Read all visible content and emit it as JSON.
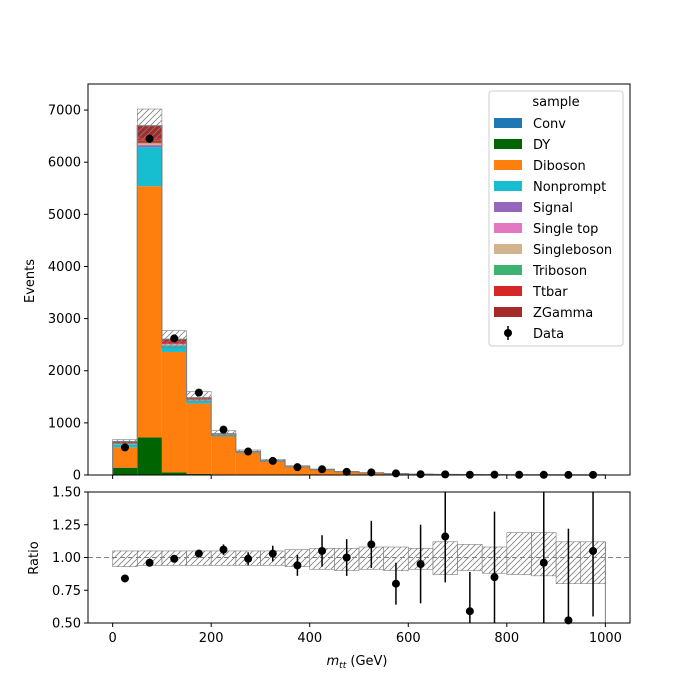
{
  "chart_data": [
    {
      "type": "stacked-histogram",
      "xlabel": "",
      "ylabel": "Events",
      "xlim": [
        -50,
        1050
      ],
      "ylim": [
        0,
        7500
      ],
      "yticks": [
        0,
        1000,
        2000,
        3000,
        4000,
        5000,
        6000,
        7000
      ],
      "bins": [
        0,
        50,
        100,
        150,
        200,
        250,
        300,
        350,
        400,
        450,
        500,
        550,
        600,
        650,
        700,
        750,
        800,
        850,
        900,
        950,
        1000
      ],
      "legend": {
        "title": "sample",
        "placement": "top-right",
        "data_label": "Data"
      },
      "series": [
        {
          "name": "Conv",
          "color": "#1f77b4",
          "values": [
            0,
            0,
            0,
            0,
            0,
            0,
            0,
            0,
            0,
            0,
            0,
            0,
            0,
            0,
            0,
            0,
            0,
            0,
            0,
            0
          ]
        },
        {
          "name": "DY",
          "color": "#006400",
          "values": [
            140,
            720,
            50,
            20,
            8,
            4,
            2,
            1,
            1,
            0,
            0,
            0,
            0,
            0,
            0,
            0,
            0,
            0,
            0,
            0
          ]
        },
        {
          "name": "Diboson",
          "color": "#ff7f0e",
          "values": [
            390,
            4820,
            2310,
            1350,
            730,
            420,
            260,
            150,
            100,
            60,
            40,
            25,
            15,
            10,
            8,
            6,
            4,
            3,
            2,
            2
          ]
        },
        {
          "name": "Nonprompt",
          "color": "#17becf",
          "values": [
            60,
            750,
            120,
            60,
            30,
            15,
            8,
            4,
            2,
            1,
            1,
            0,
            0,
            0,
            0,
            0,
            0,
            0,
            0,
            0
          ]
        },
        {
          "name": "Signal",
          "color": "#9467bd",
          "values": [
            2,
            30,
            10,
            4,
            2,
            1,
            0,
            0,
            0,
            0,
            0,
            0,
            0,
            0,
            0,
            0,
            0,
            0,
            0,
            0
          ]
        },
        {
          "name": "Single top",
          "color": "#e377c2",
          "values": [
            1,
            10,
            5,
            3,
            2,
            1,
            0,
            0,
            0,
            0,
            0,
            0,
            0,
            0,
            0,
            0,
            0,
            0,
            0,
            0
          ]
        },
        {
          "name": "Singleboson",
          "color": "#d2b48c",
          "values": [
            3,
            30,
            12,
            5,
            2,
            1,
            0,
            0,
            0,
            0,
            0,
            0,
            0,
            0,
            0,
            0,
            0,
            0,
            0,
            0
          ]
        },
        {
          "name": "Triboson",
          "color": "#3cb371",
          "values": [
            1,
            10,
            8,
            5,
            3,
            2,
            1,
            1,
            0,
            0,
            0,
            0,
            0,
            0,
            0,
            0,
            0,
            0,
            0,
            0
          ]
        },
        {
          "name": "Ttbar",
          "color": "#d62728",
          "values": [
            3,
            80,
            40,
            20,
            10,
            5,
            3,
            2,
            1,
            1,
            0,
            0,
            0,
            0,
            0,
            0,
            0,
            0,
            0,
            0
          ]
        },
        {
          "name": "ZGamma",
          "color": "#a52a2a",
          "values": [
            40,
            250,
            50,
            15,
            5,
            2,
            1,
            0,
            0,
            0,
            0,
            0,
            0,
            0,
            0,
            0,
            0,
            0,
            0,
            0
          ]
        }
      ],
      "uncertainty_band": {
        "up": [
          680,
          7020,
          2770,
          1600,
          850,
          480,
          300,
          180,
          115,
          70,
          45,
          30,
          17,
          11,
          9,
          7,
          5,
          4,
          3,
          3
        ],
        "down": [
          610,
          6420,
          2440,
          1420,
          750,
          425,
          255,
          150,
          98,
          58,
          38,
          24,
          14,
          9,
          7,
          5,
          3,
          2,
          1,
          1
        ]
      },
      "data_points": {
        "name": "Data",
        "x": [
          25,
          75,
          125,
          175,
          225,
          275,
          325,
          375,
          425,
          475,
          525,
          575,
          625,
          675,
          725,
          775,
          825,
          875,
          925,
          975
        ],
        "y": [
          530,
          6450,
          2620,
          1580,
          870,
          450,
          270,
          150,
          110,
          60,
          50,
          30,
          15,
          12,
          5,
          6,
          5,
          4,
          2,
          3
        ],
        "yerr": [
          23,
          80,
          51,
          40,
          29,
          21,
          16,
          12,
          10,
          8,
          7,
          5,
          4,
          3,
          2,
          2,
          2,
          2,
          1,
          2
        ]
      }
    },
    {
      "type": "ratio",
      "xlabel": "m_tt (GeV)",
      "xlabel_main": "m",
      "xlabel_sub": "tt",
      "xlabel_unit": " (GeV)",
      "ylabel": "Ratio",
      "xlim": [
        -50,
        1050
      ],
      "ylim": [
        0.5,
        1.5
      ],
      "xticks": [
        0,
        200,
        400,
        600,
        800,
        1000
      ],
      "yticks": [
        0.5,
        0.75,
        1.0,
        1.25,
        1.5
      ],
      "ytick_labels": [
        "0.50",
        "0.75",
        "1.00",
        "1.25",
        "1.50"
      ],
      "reference_line": 1.0,
      "bins": [
        0,
        50,
        100,
        150,
        200,
        250,
        300,
        350,
        400,
        450,
        500,
        550,
        600,
        650,
        700,
        750,
        800,
        850,
        900,
        950,
        1000
      ],
      "band_up": [
        1.05,
        1.05,
        1.05,
        1.05,
        1.05,
        1.05,
        1.05,
        1.06,
        1.07,
        1.07,
        1.08,
        1.08,
        1.07,
        1.12,
        1.1,
        1.08,
        1.19,
        1.19,
        1.12,
        1.12
      ],
      "band_down": [
        0.93,
        0.94,
        0.94,
        0.94,
        0.94,
        0.94,
        0.94,
        0.93,
        0.91,
        0.9,
        0.91,
        0.9,
        0.91,
        0.87,
        0.9,
        0.88,
        0.87,
        0.86,
        0.8,
        0.8
      ],
      "points": {
        "x": [
          25,
          75,
          125,
          175,
          225,
          275,
          325,
          375,
          425,
          475,
          525,
          575,
          625,
          675,
          725,
          775,
          825,
          875,
          925,
          975
        ],
        "y": [
          0.84,
          0.96,
          0.99,
          1.03,
          1.06,
          0.99,
          1.03,
          0.94,
          1.05,
          1.0,
          1.1,
          0.8,
          0.95,
          1.16,
          0.59,
          0.85,
          null,
          0.96,
          0.52,
          1.05
        ],
        "err": [
          0.02,
          0.01,
          0.02,
          0.03,
          0.04,
          0.05,
          0.06,
          0.08,
          0.12,
          0.14,
          0.18,
          0.16,
          0.3,
          0.35,
          0.3,
          0.5,
          null,
          0.55,
          0.7,
          0.5
        ]
      }
    }
  ]
}
